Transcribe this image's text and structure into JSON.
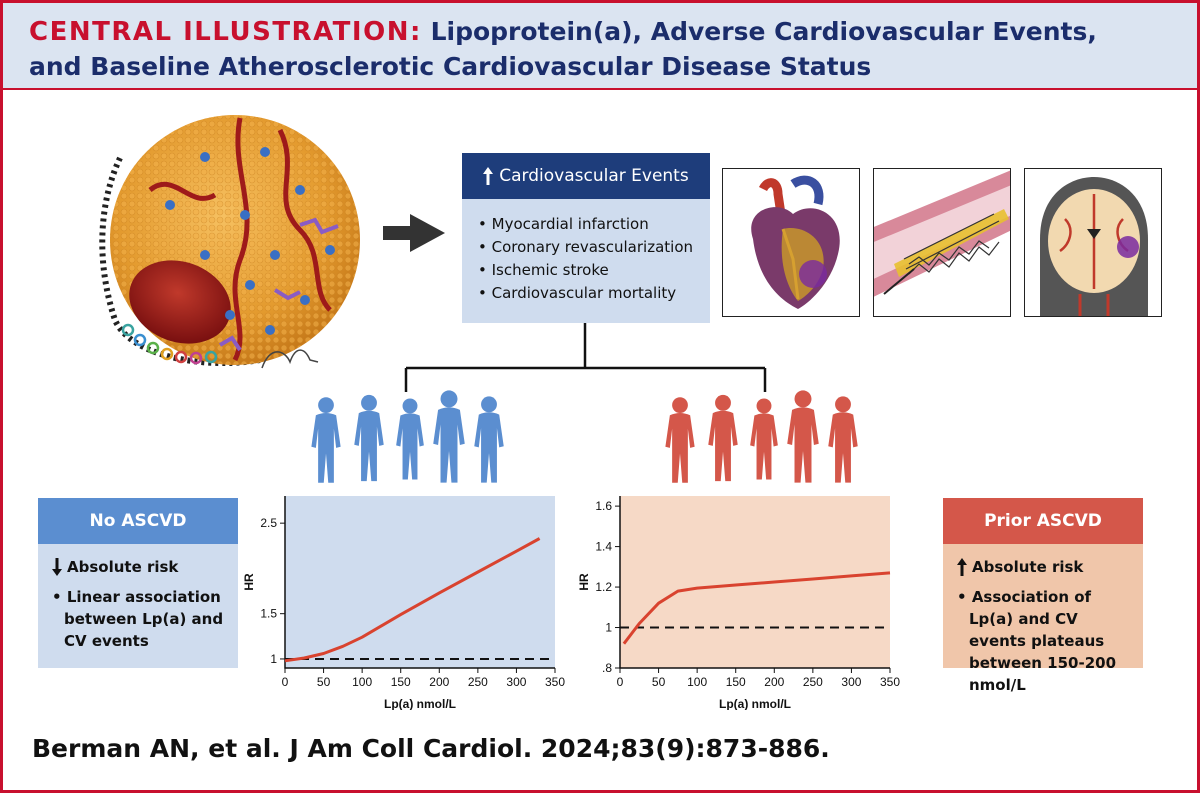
{
  "header": {
    "prefix": "CENTRAL ILLUSTRATION:",
    "title_line1": "Lipoprotein(a), Adverse Cardiovascular Events,",
    "title_line2": "and Baseline Atherosclerotic Cardiovascular Disease Status"
  },
  "events": {
    "title": "Cardiovascular Events",
    "items": [
      "Myocardial infarction",
      "Coronary revascularization",
      "Ischemic stroke",
      "Cardiovascular mortality"
    ]
  },
  "no_ascvd": {
    "title": "No ASCVD",
    "risk": "Absolute risk",
    "risk_direction": "down",
    "bullet": "Linear association between Lp(a) and CV events"
  },
  "prior_ascvd": {
    "title": "Prior ASCVD",
    "risk": "Absolute risk",
    "risk_direction": "up",
    "bullet": "Association of Lp(a) and CV events plateaus between 150-200 nmol/L"
  },
  "colors": {
    "brand_red": "#c8102e",
    "navy": "#1e3d7b",
    "blue_people": "#5b8ed0",
    "red_people": "#d4574a",
    "light_blue": "#cfdcee",
    "peach": "#f0c6aa",
    "curve": "#d9432f"
  },
  "icons": {
    "particle": "lipoprotein-a-particle",
    "arrow": "right-arrow",
    "heart": "heart-illustration",
    "stent": "artery-stent-illustration",
    "brain": "brain-stroke-illustration"
  },
  "chart_data": [
    {
      "type": "line",
      "panel": "No ASCVD",
      "xlabel": "Lp(a) nmol/L",
      "ylabel": "HR",
      "xlim": [
        0,
        350
      ],
      "ylim": [
        0.9,
        2.8
      ],
      "x_ticks": [
        "0",
        "50",
        "100",
        "150",
        "200",
        "250",
        "300",
        "350"
      ],
      "y_ticks": [
        "1",
        "1.5",
        "2.5"
      ],
      "y_tick_values": [
        1,
        1.5,
        2.5
      ],
      "reference_line": 1,
      "series": [
        {
          "x": [
            0,
            25,
            50,
            75,
            100,
            150,
            200,
            250,
            300,
            330
          ],
          "y": [
            0.98,
            1.01,
            1.06,
            1.14,
            1.24,
            1.49,
            1.73,
            1.96,
            2.19,
            2.33
          ]
        }
      ]
    },
    {
      "type": "line",
      "panel": "Prior ASCVD",
      "xlabel": "Lp(a) nmol/L",
      "ylabel": "HR",
      "xlim": [
        0,
        350
      ],
      "ylim": [
        0.8,
        1.65
      ],
      "x_ticks": [
        "0",
        "50",
        "100",
        "150",
        "200",
        "250",
        "300",
        "350"
      ],
      "y_ticks": [
        ".8",
        "1",
        "1.2",
        "1.4",
        "1.6"
      ],
      "y_tick_values": [
        0.8,
        1.0,
        1.2,
        1.4,
        1.6
      ],
      "reference_line": 1,
      "series": [
        {
          "x": [
            5,
            25,
            50,
            75,
            100,
            150,
            200,
            250,
            300,
            350
          ],
          "y": [
            0.92,
            1.02,
            1.12,
            1.18,
            1.195,
            1.21,
            1.225,
            1.24,
            1.255,
            1.27
          ]
        }
      ]
    }
  ]
}
